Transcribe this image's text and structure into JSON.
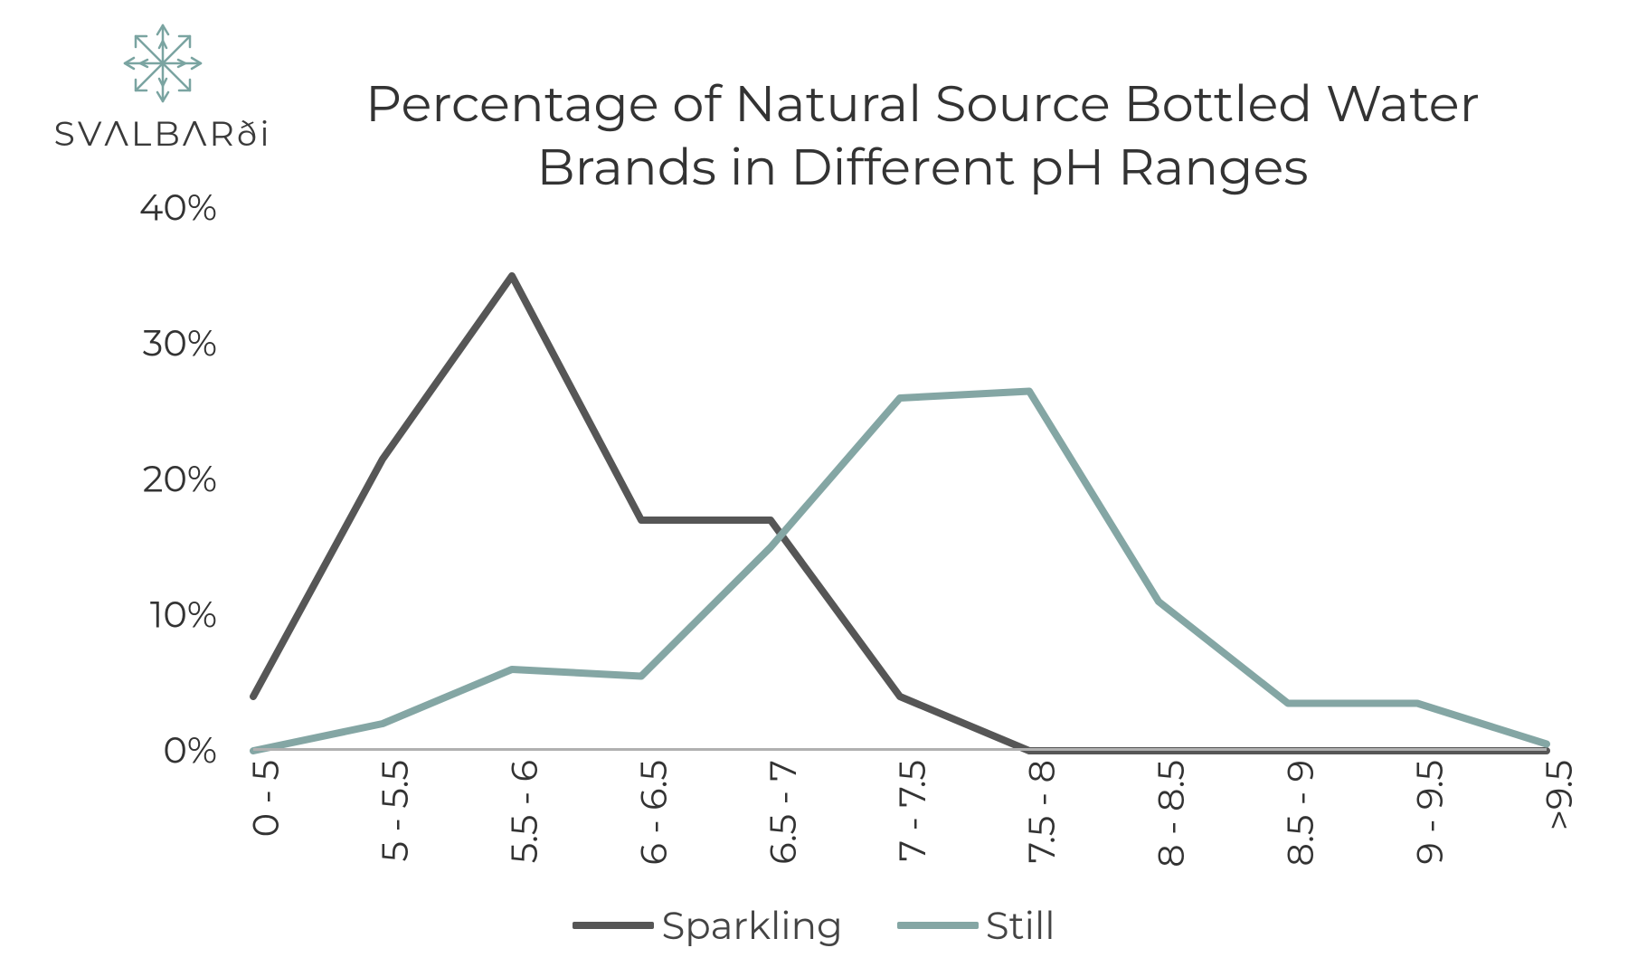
{
  "logo": {
    "text": "SVΛLBΛRði",
    "snowflake_color": "#7aa4a1"
  },
  "chart": {
    "type": "line",
    "title": "Percentage of Natural Source Bottled Water Brands in Different pH Ranges",
    "title_fontsize": 56,
    "title_color": "#333333",
    "background_color": "#ffffff",
    "ylim": [
      0,
      40
    ],
    "ytick_step": 10,
    "yticks": [
      0,
      10,
      20,
      30,
      40
    ],
    "ytick_labels": [
      "0%",
      "10%",
      "20%",
      "30%",
      "40%"
    ],
    "ytick_fontsize": 40,
    "categories": [
      "0 - 5",
      "5 - 5.5",
      "5.5 - 6",
      "6 - 6.5",
      "6.5 - 7",
      "7 - 7.5",
      "7.5 - 8",
      "8 - 8.5",
      "8.5 - 9",
      "9 - 9.5",
      ">9.5"
    ],
    "xtick_fontsize": 40,
    "xtick_rotation": -90,
    "baseline_color": "#b0b0b0",
    "series": [
      {
        "name": "Sparkling",
        "color": "#565656",
        "line_width": 8,
        "values": [
          4,
          21.5,
          35,
          17,
          17,
          4,
          0,
          0,
          0,
          0,
          0
        ]
      },
      {
        "name": "Still",
        "color": "#84a6a4",
        "line_width": 8,
        "values": [
          0,
          2,
          6,
          5.5,
          15,
          26,
          26.5,
          11,
          3.5,
          3.5,
          0.5
        ]
      }
    ],
    "legend": {
      "fontsize": 42,
      "position": "bottom",
      "dash_width": 90
    }
  }
}
